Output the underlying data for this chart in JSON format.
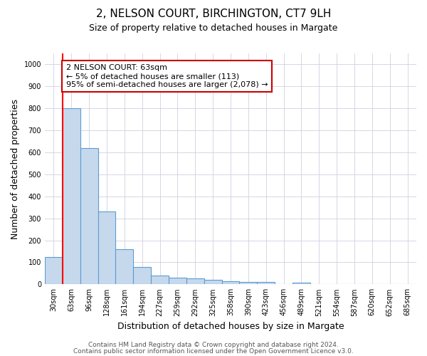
{
  "title_line1": "2, NELSON COURT, BIRCHINGTON, CT7 9LH",
  "title_line2": "Size of property relative to detached houses in Margate",
  "xlabel": "Distribution of detached houses by size in Margate",
  "ylabel": "Number of detached properties",
  "bar_labels": [
    "30sqm",
    "63sqm",
    "96sqm",
    "128sqm",
    "161sqm",
    "194sqm",
    "227sqm",
    "259sqm",
    "292sqm",
    "325sqm",
    "358sqm",
    "390sqm",
    "423sqm",
    "456sqm",
    "489sqm",
    "521sqm",
    "554sqm",
    "587sqm",
    "620sqm",
    "652sqm",
    "685sqm"
  ],
  "bar_values": [
    125,
    800,
    620,
    330,
    160,
    80,
    40,
    30,
    27,
    20,
    15,
    10,
    10,
    0,
    8,
    0,
    0,
    0,
    0,
    0,
    0
  ],
  "bar_color": "#c6d9ec",
  "bar_edgecolor": "#5b9bd5",
  "bar_linewidth": 0.8,
  "red_line_index": 1,
  "red_line_color": "#ff0000",
  "annotation_text": "2 NELSON COURT: 63sqm\n← 5% of detached houses are smaller (113)\n95% of semi-detached houses are larger (2,078) →",
  "annotation_box_color": "#ffffff",
  "annotation_box_edgecolor": "#cc0000",
  "ylim": [
    0,
    1050
  ],
  "yticks": [
    0,
    100,
    200,
    300,
    400,
    500,
    600,
    700,
    800,
    900,
    1000
  ],
  "footnote1": "Contains HM Land Registry data © Crown copyright and database right 2024.",
  "footnote2": "Contains public sector information licensed under the Open Government Licence v3.0.",
  "bg_color": "#ffffff",
  "grid_color": "#d0d0e0",
  "title_fontsize": 11,
  "subtitle_fontsize": 9,
  "axis_label_fontsize": 9,
  "tick_fontsize": 7,
  "annotation_fontsize": 8,
  "footnote_fontsize": 6.5
}
